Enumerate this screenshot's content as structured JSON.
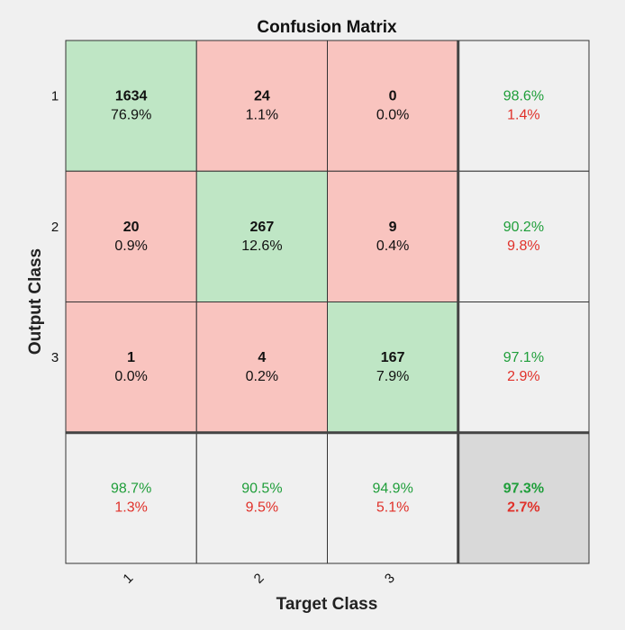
{
  "chart_data": {
    "type": "heatmap",
    "title": "Confusion Matrix",
    "xlabel": "Target Class",
    "ylabel": "Output Class",
    "classes": [
      "1",
      "2",
      "3"
    ],
    "matrix": [
      {
        "count": "1634",
        "percent": "76.9%"
      },
      {
        "count": "24",
        "percent": "1.1%"
      },
      {
        "count": "0",
        "percent": "0.0%"
      },
      {
        "count": "20",
        "percent": "0.9%"
      },
      {
        "count": "267",
        "percent": "12.6%"
      },
      {
        "count": "9",
        "percent": "0.4%"
      },
      {
        "count": "1",
        "percent": "0.0%"
      },
      {
        "count": "4",
        "percent": "0.2%"
      },
      {
        "count": "167",
        "percent": "7.9%"
      }
    ],
    "row_summary": [
      {
        "correct": "98.6%",
        "error": "1.4%"
      },
      {
        "correct": "90.2%",
        "error": "9.8%"
      },
      {
        "correct": "97.1%",
        "error": "2.9%"
      }
    ],
    "col_summary": [
      {
        "correct": "98.7%",
        "error": "1.3%"
      },
      {
        "correct": "90.5%",
        "error": "9.5%"
      },
      {
        "correct": "94.9%",
        "error": "5.1%"
      }
    ],
    "overall": {
      "correct": "97.3%",
      "error": "2.7%"
    },
    "colors": {
      "background": "#f0f0f0",
      "diagonal": "#bfe6c5",
      "off_diagonal": "#f9c4bf",
      "summary": "#f0f0f0",
      "overall": "#d9d9d9",
      "correct_text": "#1f9e3a",
      "error_text": "#e0312a",
      "grid": "#333333"
    }
  }
}
